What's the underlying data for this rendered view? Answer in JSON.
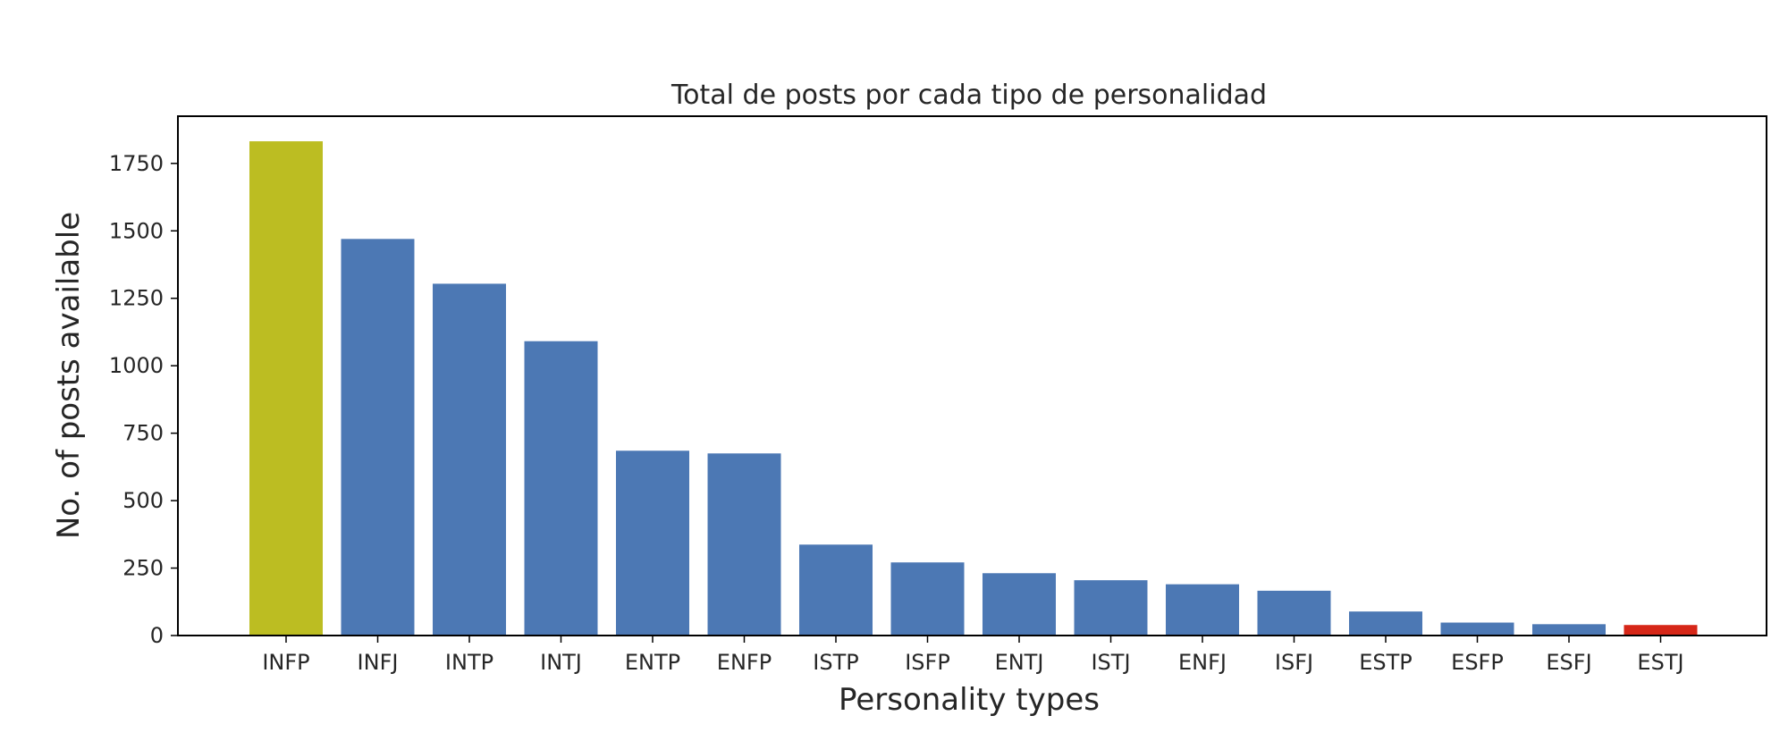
{
  "chart_data": {
    "type": "bar",
    "title": "Total de posts por cada tipo de personalidad",
    "xlabel": "Personality types",
    "ylabel": "No. of posts available",
    "categories": [
      "INFP",
      "INFJ",
      "INTP",
      "INTJ",
      "ENTP",
      "ENFP",
      "ISTP",
      "ISFP",
      "ENTJ",
      "ISTJ",
      "ENFJ",
      "ISFJ",
      "ESTP",
      "ESFP",
      "ESFJ",
      "ESTJ"
    ],
    "values": [
      1832,
      1470,
      1304,
      1091,
      685,
      675,
      337,
      271,
      231,
      205,
      190,
      166,
      89,
      48,
      42,
      39
    ],
    "bar_colors": [
      "#bcbd22",
      "#4c78b4",
      "#4c78b4",
      "#4c78b4",
      "#4c78b4",
      "#4c78b4",
      "#4c78b4",
      "#4c78b4",
      "#4c78b4",
      "#4c78b4",
      "#4c78b4",
      "#4c78b4",
      "#4c78b4",
      "#4c78b4",
      "#4c78b4",
      "#d62718"
    ],
    "yticks": [
      0,
      250,
      500,
      750,
      1000,
      1250,
      1500,
      1750
    ],
    "ytick_labels": [
      "0",
      "250",
      "500",
      "750",
      "1000",
      "1250",
      "1500",
      "1750"
    ],
    "ylim": [
      0,
      1925
    ],
    "grid": false,
    "legend": "none"
  }
}
